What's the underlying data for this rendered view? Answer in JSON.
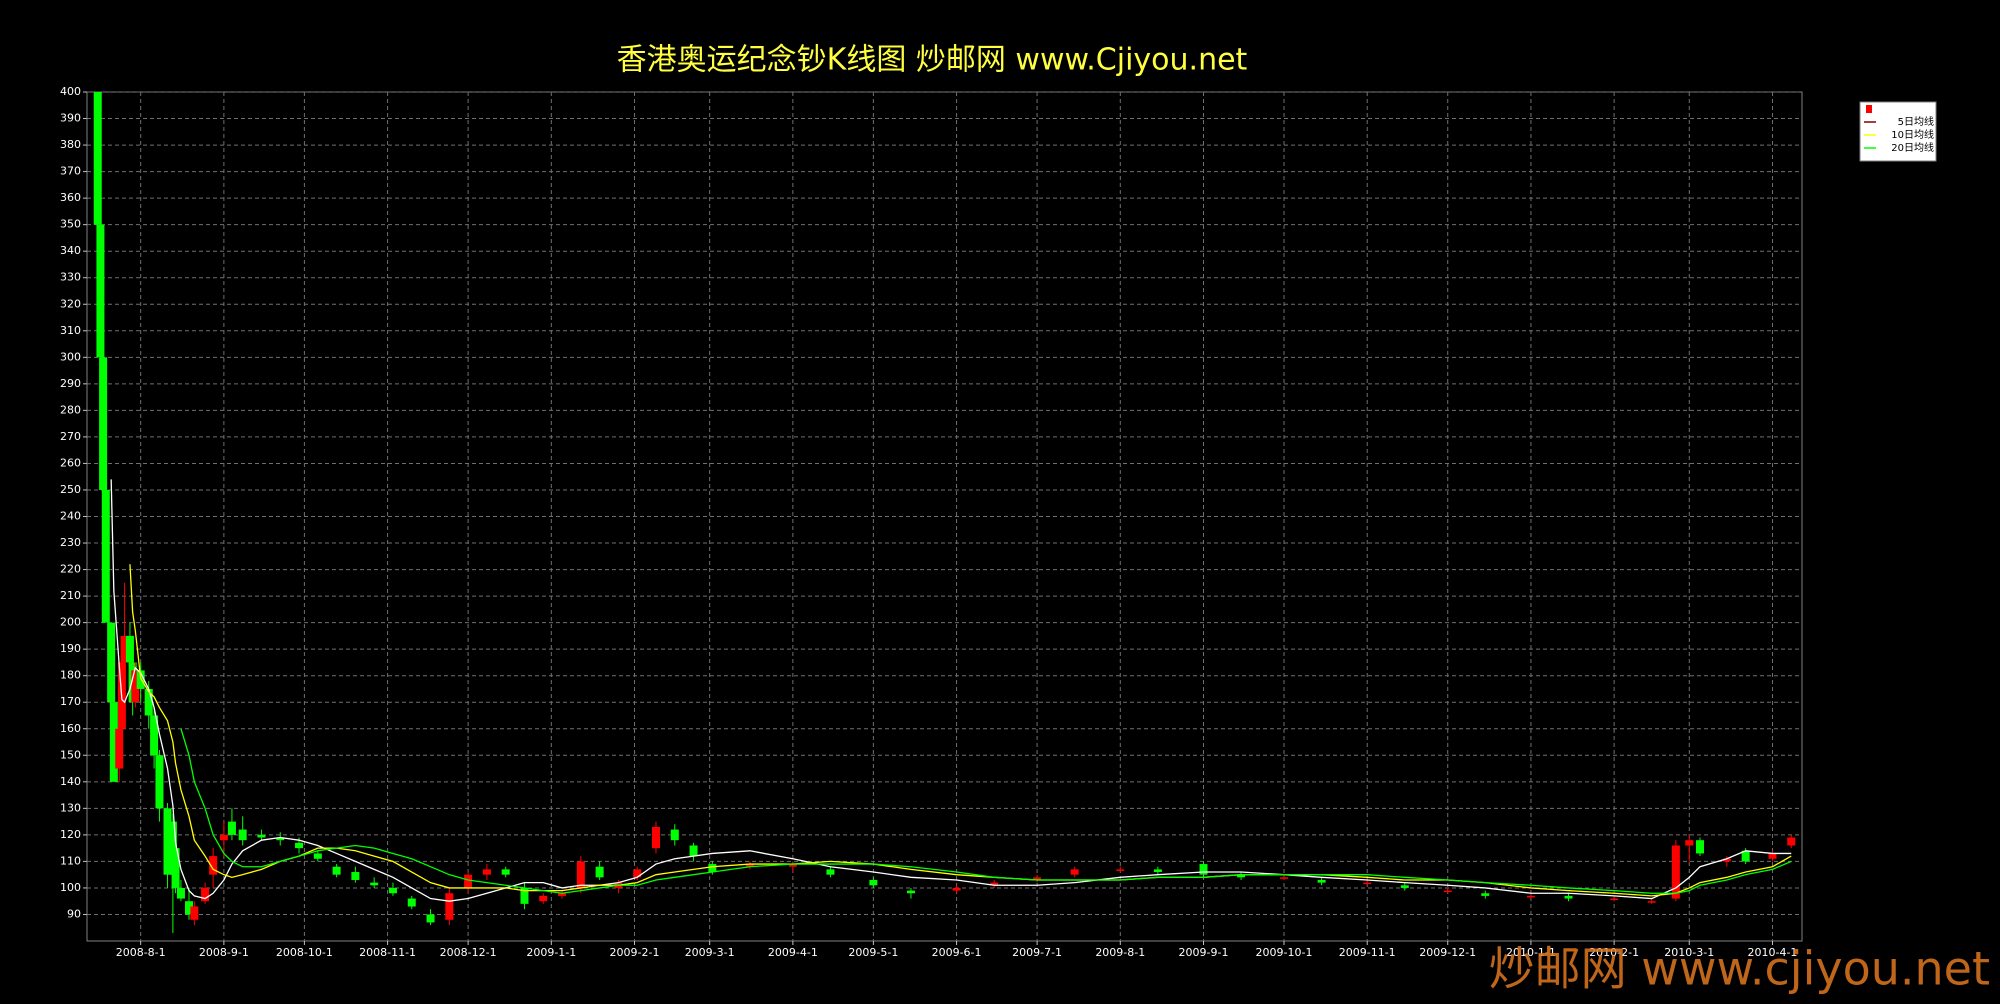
{
  "chart_data": {
    "type": "candlestick",
    "title": "香港奥运纪念钞K线图  炒邮网 www.Cjiyou.net",
    "watermark": "炒邮网 www.cjiyou.net",
    "up_color": "#ff0000",
    "down_color": "#00ff00",
    "grid": true,
    "legend_position": "top-right",
    "xlim": [
      "2008-7-12",
      "2010-4-12"
    ],
    "xticks": [
      "2008-8-1",
      "2008-9-1",
      "2008-10-1",
      "2008-11-1",
      "2008-12-1",
      "2009-1-1",
      "2009-2-1",
      "2009-3-1",
      "2009-4-1",
      "2009-5-1",
      "2009-6-1",
      "2009-7-1",
      "2009-8-1",
      "2009-9-1",
      "2009-10-1",
      "2009-11-1",
      "2009-12-1",
      "2010-1-1",
      "2010-2-1",
      "2010-3-1",
      "2010-4-1"
    ],
    "ylim": [
      80,
      400
    ],
    "yticks": [
      90,
      100,
      110,
      120,
      130,
      140,
      150,
      160,
      170,
      180,
      190,
      200,
      210,
      220,
      230,
      240,
      250,
      260,
      270,
      280,
      290,
      300,
      310,
      320,
      330,
      340,
      350,
      360,
      370,
      380,
      390,
      400
    ],
    "x": [
      "2008-7-16",
      "2008-7-17",
      "2008-7-18",
      "2008-7-19",
      "2008-7-21",
      "2008-7-22",
      "2008-7-24",
      "2008-7-25",
      "2008-7-26",
      "2008-7-28",
      "2008-7-29",
      "2008-7-30",
      "2008-8-1",
      "2008-8-4",
      "2008-8-6",
      "2008-8-8",
      "2008-8-11",
      "2008-8-13",
      "2008-8-14",
      "2008-8-16",
      "2008-8-19",
      "2008-8-21",
      "2008-8-25",
      "2008-8-28",
      "2008-9-1",
      "2008-9-4",
      "2008-9-8",
      "2008-9-15",
      "2008-9-22",
      "2008-9-29",
      "2008-10-6",
      "2008-10-13",
      "2008-10-20",
      "2008-10-27",
      "2008-11-3",
      "2008-11-10",
      "2008-11-17",
      "2008-11-24",
      "2008-12-1",
      "2008-12-8",
      "2008-12-15",
      "2008-12-22",
      "2008-12-29",
      "2009-1-5",
      "2009-1-12",
      "2009-1-19",
      "2009-1-26",
      "2009-2-2",
      "2009-2-9",
      "2009-2-16",
      "2009-2-23",
      "2009-3-2",
      "2009-3-16",
      "2009-4-1",
      "2009-4-15",
      "2009-5-1",
      "2009-5-15",
      "2009-6-1",
      "2009-6-15",
      "2009-7-1",
      "2009-7-15",
      "2009-8-1",
      "2009-8-15",
      "2009-9-1",
      "2009-9-15",
      "2009-10-1",
      "2009-10-15",
      "2009-11-1",
      "2009-11-15",
      "2009-12-1",
      "2009-12-15",
      "2010-1-1",
      "2010-1-15",
      "2010-2-1",
      "2010-2-15",
      "2010-2-24",
      "2010-3-1",
      "2010-3-5",
      "2010-3-15",
      "2010-3-22",
      "2010-4-1",
      "2010-4-8"
    ],
    "open": [
      400,
      350,
      300,
      250,
      200,
      170,
      145,
      160,
      185,
      195,
      185,
      170,
      182,
      175,
      165,
      150,
      130,
      125,
      115,
      100,
      95,
      88,
      95,
      105,
      118,
      125,
      122,
      120,
      119,
      117,
      113,
      108,
      106,
      102,
      100,
      96,
      90,
      88,
      100,
      105,
      107,
      100,
      95,
      97,
      100,
      108,
      100,
      104,
      115,
      122,
      116,
      109,
      108,
      108,
      107,
      103,
      99,
      99,
      101,
      103,
      105,
      107,
      107,
      109,
      105,
      104,
      103,
      102,
      101,
      99,
      98,
      97,
      97,
      96,
      95,
      96,
      116,
      118,
      110,
      114,
      111,
      116
    ],
    "high": [
      400,
      350,
      300,
      250,
      200,
      175,
      160,
      190,
      215,
      200,
      190,
      185,
      185,
      178,
      168,
      152,
      132,
      128,
      118,
      103,
      100,
      95,
      102,
      115,
      125,
      130,
      127,
      122,
      121,
      119,
      114,
      109,
      108,
      104,
      102,
      97,
      92,
      100,
      106,
      109,
      108,
      102,
      98,
      99,
      112,
      110,
      103,
      108,
      125,
      124,
      117,
      110,
      110,
      110,
      108,
      104,
      100,
      101,
      103,
      105,
      108,
      108,
      108,
      110,
      106,
      105,
      104,
      103,
      102,
      100,
      99,
      98,
      98,
      97,
      96,
      118,
      120,
      119,
      112,
      115,
      114,
      120
    ],
    "low": [
      350,
      300,
      250,
      200,
      170,
      140,
      140,
      158,
      180,
      180,
      165,
      168,
      170,
      160,
      145,
      125,
      100,
      83,
      98,
      95,
      88,
      86,
      94,
      100,
      112,
      118,
      116,
      118,
      116,
      113,
      110,
      104,
      102,
      100,
      97,
      92,
      86,
      86,
      98,
      103,
      104,
      92,
      94,
      96,
      98,
      103,
      98,
      103,
      113,
      116,
      110,
      105,
      107,
      106,
      104,
      100,
      96,
      98,
      100,
      102,
      104,
      106,
      105,
      104,
      103,
      103,
      101,
      101,
      99,
      98,
      96,
      96,
      95,
      95,
      94,
      95,
      110,
      112,
      108,
      109,
      110,
      115
    ],
    "close": [
      350,
      300,
      250,
      200,
      170,
      140,
      160,
      185,
      195,
      185,
      170,
      182,
      175,
      165,
      150,
      130,
      105,
      105,
      100,
      96,
      90,
      93,
      100,
      112,
      120,
      120,
      118,
      119,
      118,
      115,
      111,
      105,
      103,
      101,
      98,
      93,
      87,
      98,
      105,
      107,
      105,
      94,
      97,
      98,
      110,
      104,
      102,
      107,
      123,
      118,
      112,
      106,
      109,
      109,
      105,
      101,
      98,
      100,
      102,
      104,
      107,
      107,
      106,
      105,
      104,
      104,
      102,
      102,
      100,
      99,
      97,
      97,
      96,
      96,
      95,
      116,
      118,
      113,
      111,
      110,
      113,
      119
    ],
    "series": [
      {
        "name": "5日均线",
        "color": "#ffffff",
        "values": [
          null,
          null,
          null,
          null,
          254,
          212,
          184,
          171,
          170,
          175,
          179,
          183,
          181,
          175,
          168,
          158,
          145,
          131,
          117,
          107,
          99,
          97,
          96,
          98,
          103,
          109,
          114,
          118,
          119,
          118,
          116,
          113,
          110,
          107,
          104,
          100,
          96,
          95,
          96,
          98,
          100,
          102,
          102,
          100,
          101,
          101,
          102,
          104,
          109,
          111,
          112,
          113,
          114,
          111,
          108,
          106,
          104,
          103,
          101,
          101,
          102,
          104,
          105,
          106,
          106,
          105,
          104,
          103,
          102,
          101,
          100,
          98,
          98,
          97,
          96,
          100,
          104,
          108,
          111,
          114,
          113,
          113
        ]
      },
      {
        "name": "10日均线",
        "color": "#ffff00",
        "values": [
          null,
          null,
          null,
          null,
          null,
          null,
          null,
          null,
          null,
          222,
          204,
          197,
          179,
          174,
          172,
          168,
          163,
          155,
          147,
          137,
          127,
          118,
          112,
          107,
          105,
          104,
          105,
          107,
          110,
          112,
          115,
          115,
          114,
          112,
          110,
          106,
          102,
          100,
          100,
          100,
          100,
          99,
          99,
          99,
          100,
          101,
          101,
          102,
          105,
          106,
          107,
          108,
          109,
          109,
          110,
          109,
          107,
          105,
          104,
          103,
          103,
          103,
          104,
          104,
          105,
          105,
          105,
          104,
          103,
          103,
          102,
          100,
          99,
          98,
          97,
          98,
          100,
          102,
          104,
          106,
          108,
          112
        ]
      },
      {
        "name": "20日均线",
        "color": "#00ff00",
        "values": [
          null,
          null,
          null,
          null,
          null,
          null,
          null,
          null,
          null,
          null,
          null,
          null,
          null,
          null,
          null,
          null,
          null,
          null,
          null,
          160,
          150,
          140,
          130,
          120,
          113,
          110,
          108,
          108,
          110,
          112,
          114,
          115,
          116,
          115,
          113,
          111,
          108,
          105,
          103,
          102,
          101,
          100,
          99,
          98,
          99,
          100,
          101,
          101,
          103,
          104,
          105,
          106,
          108,
          109,
          109,
          109,
          108,
          106,
          104,
          103,
          103,
          103,
          104,
          104,
          105,
          105,
          105,
          105,
          104,
          103,
          102,
          101,
          100,
          99,
          98,
          98,
          99,
          101,
          103,
          105,
          107,
          110
        ]
      }
    ]
  }
}
